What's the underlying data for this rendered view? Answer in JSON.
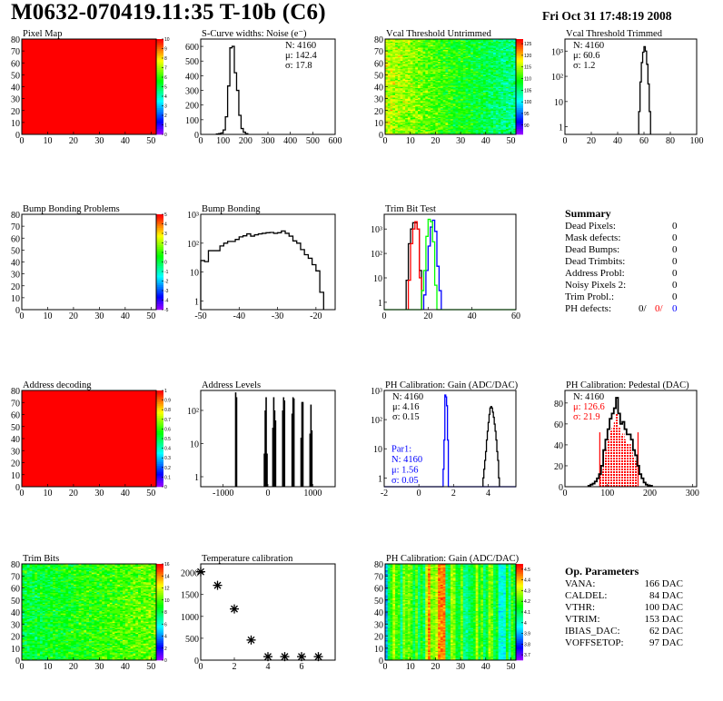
{
  "header": {
    "title": "M0632-070419.11:35 T-10b (C6)",
    "date": "Fri Oct 31 17:48:19 2008"
  },
  "colors": {
    "black": "#000000",
    "red": "#ff0000",
    "blue": "#0000ff",
    "green": "#00ff00"
  },
  "chart_data": [
    {
      "id": "pixel_map",
      "type": "heatmap",
      "title": "Pixel Map",
      "xlim": [
        0,
        52
      ],
      "ylim": [
        0,
        80
      ],
      "xticks": [
        0,
        10,
        20,
        30,
        40,
        50
      ],
      "yticks": [
        0,
        10,
        20,
        30,
        40,
        50,
        60,
        70,
        80
      ],
      "zlim": [
        0,
        10
      ],
      "zticks": [
        0,
        1,
        2,
        3,
        4,
        5,
        6,
        7,
        8,
        9,
        10
      ],
      "fill": "uniform",
      "uniform_value": 10
    },
    {
      "id": "noise",
      "type": "bar",
      "title": "S-Curve widths: Noise (e⁻)",
      "xlim": [
        0,
        600
      ],
      "ylim": [
        0,
        650
      ],
      "xticks": [
        0,
        100,
        200,
        300,
        400,
        500,
        600
      ],
      "yticks": [
        0,
        100,
        200,
        300,
        400,
        500,
        600
      ],
      "bin_width": 10,
      "series": [
        {
          "color": "#000000",
          "x": [
            70,
            80,
            90,
            100,
            110,
            120,
            130,
            140,
            150,
            160,
            170,
            180,
            190,
            200
          ],
          "values": [
            3,
            5,
            10,
            30,
            120,
            330,
            590,
            600,
            420,
            300,
            130,
            40,
            15,
            5
          ]
        }
      ],
      "stats": [
        {
          "position": "top-right",
          "lines": [
            {
              "text": "N: 4160",
              "color": "#000000"
            },
            {
              "text": "μ: 142.4",
              "color": "#000000"
            },
            {
              "text": "σ: 17.8",
              "color": "#000000"
            }
          ]
        }
      ]
    },
    {
      "id": "vcal_untrimmed",
      "type": "heatmap",
      "title": "Vcal Threshold Untrimmed",
      "xlim": [
        0,
        52
      ],
      "ylim": [
        0,
        80
      ],
      "xticks": [
        0,
        10,
        20,
        30,
        40,
        50
      ],
      "yticks": [
        0,
        10,
        20,
        30,
        40,
        50,
        60,
        70,
        80
      ],
      "zlim": [
        86,
        127
      ],
      "zticks": [
        90,
        95,
        100,
        105,
        110,
        115,
        120,
        125
      ],
      "fill": "vcal"
    },
    {
      "id": "vcal_trimmed",
      "type": "bar",
      "title": "Vcal Threshold Trimmed",
      "xlim": [
        0,
        100
      ],
      "ylim": [
        0.5,
        3000
      ],
      "log_y": true,
      "xticks": [
        0,
        20,
        40,
        60,
        80,
        100
      ],
      "yticks": [
        1,
        10,
        100,
        1000
      ],
      "ytick_labels": [
        "1",
        "10",
        "10²",
        "10³"
      ],
      "bin_width": 1,
      "series": [
        {
          "color": "#000000",
          "x": [
            56,
            57,
            58,
            59,
            60,
            61,
            62,
            63,
            64
          ],
          "values": [
            4,
            60,
            350,
            900,
            1500,
            1000,
            300,
            50,
            4
          ]
        }
      ],
      "stats": [
        {
          "position": "top-left",
          "lines": [
            {
              "text": "N: 4160",
              "color": "#000000"
            },
            {
              "text": "μ: 60.6",
              "color": "#000000"
            },
            {
              "text": "σ:  1.2",
              "color": "#000000"
            }
          ]
        }
      ]
    },
    {
      "id": "bump_problems",
      "type": "heatmap",
      "title": "Bump Bonding Problems",
      "xlim": [
        0,
        52
      ],
      "ylim": [
        0,
        80
      ],
      "xticks": [
        0,
        10,
        20,
        30,
        40,
        50
      ],
      "yticks": [
        0,
        10,
        20,
        30,
        40,
        50,
        60,
        70,
        80
      ],
      "zlim": [
        -5,
        5
      ],
      "zticks": [
        -5,
        -4,
        -3,
        -2,
        -1,
        0,
        1,
        2,
        3,
        4,
        5
      ],
      "fill": "empty"
    },
    {
      "id": "bump_bonding",
      "type": "bar",
      "title": "Bump Bonding",
      "xlim": [
        -50,
        -15
      ],
      "ylim": [
        0.5,
        1000
      ],
      "log_y": true,
      "xticks": [
        -50,
        -40,
        -30,
        -20
      ],
      "yticks": [
        1,
        10,
        100,
        1000
      ],
      "ytick_labels": [
        "1",
        "10",
        "10²",
        "10³"
      ],
      "bin_width": 1,
      "series": [
        {
          "color": "#000000",
          "x": [
            -50,
            -49,
            -48,
            -47,
            -46,
            -45,
            -44,
            -43,
            -42,
            -41,
            -40,
            -39,
            -38,
            -37,
            -36,
            -35,
            -34,
            -33,
            -32,
            -31,
            -30,
            -29,
            -28,
            -27,
            -26,
            -25,
            -24,
            -23,
            -22,
            -21,
            -20,
            -19
          ],
          "values": [
            25,
            23,
            55,
            55,
            55,
            80,
            100,
            115,
            115,
            135,
            165,
            180,
            210,
            175,
            195,
            210,
            220,
            230,
            235,
            220,
            230,
            265,
            220,
            175,
            120,
            100,
            60,
            40,
            30,
            18,
            11,
            2
          ]
        }
      ]
    },
    {
      "id": "trim_bit_test",
      "type": "bar",
      "title": "Trim Bit Test",
      "xlim": [
        0,
        60
      ],
      "ylim": [
        0.5,
        4000
      ],
      "log_y": true,
      "xticks": [
        0,
        20,
        40,
        60
      ],
      "yticks": [
        1,
        10,
        100,
        1000
      ],
      "ytick_labels": [
        "1",
        "10",
        "10²",
        "10³"
      ],
      "bin_width": 1,
      "series": [
        {
          "color": "#000000",
          "x": [
            10,
            11,
            12,
            13,
            14,
            15,
            16
          ],
          "values": [
            8,
            250,
            1000,
            1800,
            1800,
            1000,
            20
          ]
        },
        {
          "color": "#ff0000",
          "x": [
            11,
            12,
            13,
            14,
            15,
            16
          ],
          "values": [
            8,
            250,
            1000,
            2000,
            1000,
            10
          ]
        },
        {
          "color": "#0000ff",
          "x": [
            18,
            19,
            20,
            21,
            22,
            23,
            24,
            25
          ],
          "values": [
            2,
            20,
            200,
            1200,
            2300,
            800,
            30,
            3
          ]
        },
        {
          "color": "#00ff00",
          "x": [
            17,
            18,
            19,
            20,
            21,
            22,
            23
          ],
          "values": [
            3,
            20,
            500,
            2500,
            2000,
            300,
            5
          ],
          "full_range": true
        }
      ]
    },
    {
      "id": "address_decoding",
      "type": "heatmap",
      "title": "Address decoding",
      "xlim": [
        0,
        52
      ],
      "ylim": [
        0,
        80
      ],
      "xticks": [
        0,
        10,
        20,
        30,
        40,
        50
      ],
      "yticks": [
        0,
        10,
        20,
        30,
        40,
        50,
        60,
        70,
        80
      ],
      "zlim": [
        0,
        1
      ],
      "zticks": [
        0,
        0.1,
        0.2,
        0.3,
        0.4,
        0.5,
        0.6,
        0.7,
        0.8,
        0.9,
        1
      ],
      "fill": "uniform",
      "uniform_value": 1
    },
    {
      "id": "address_levels",
      "type": "spikes",
      "title": "Address Levels",
      "xlim": [
        -1500,
        1500
      ],
      "ylim": [
        0.5,
        400
      ],
      "log_y": true,
      "xticks": [
        -1000,
        0,
        1000
      ],
      "yticks": [
        1,
        10,
        100
      ],
      "ytick_labels": [
        "1",
        "10",
        "10²"
      ],
      "series": [
        {
          "color": "#000000",
          "x": [
            -720,
            -700,
            -80,
            -60,
            -40,
            -20,
            110,
            130,
            150,
            170,
            330,
            350,
            370,
            540,
            560,
            580,
            740,
            760,
            780,
            940,
            960,
            980
          ],
          "values": [
            350,
            250,
            5,
            100,
            250,
            5,
            30,
            250,
            100,
            50,
            100,
            250,
            200,
            80,
            250,
            230,
            15,
            180,
            180,
            20,
            150,
            25
          ]
        }
      ]
    },
    {
      "id": "ph_gain",
      "type": "bar",
      "title": "PH Calibration: Gain (ADC/DAC)",
      "xlim": [
        -2,
        5.6
      ],
      "ylim": [
        0.5,
        1000
      ],
      "log_y": true,
      "xticks": [
        -2,
        0,
        2,
        4
      ],
      "yticks": [
        1,
        10,
        100,
        1000
      ],
      "ytick_labels": [
        "1",
        "10",
        "10²",
        "10³"
      ],
      "bin_width": 0.05,
      "series": [
        {
          "color": "#000000",
          "x": [
            3.7,
            3.75,
            3.8,
            3.85,
            3.9,
            3.95,
            4.0,
            4.05,
            4.1,
            4.15,
            4.2,
            4.25,
            4.3,
            4.35,
            4.4,
            4.45,
            4.5,
            4.55,
            4.6
          ],
          "values": [
            1,
            2,
            4,
            8,
            20,
            40,
            80,
            150,
            250,
            280,
            250,
            180,
            120,
            70,
            40,
            20,
            8,
            4,
            1
          ]
        },
        {
          "color": "#0000ff",
          "x": [
            1.4,
            1.45,
            1.5,
            1.55,
            1.6,
            1.65
          ],
          "values": [
            2,
            20,
            700,
            600,
            300,
            20
          ],
          "full_range": true
        }
      ],
      "stats": [
        {
          "position": "top-left",
          "lines": [
            {
              "text": "N: 4160",
              "color": "#000000"
            },
            {
              "text": "μ: 4.16",
              "color": "#000000"
            },
            {
              "text": "σ: 0.15",
              "color": "#000000"
            }
          ]
        },
        {
          "position": "bottom-left",
          "lines": [
            {
              "text": "Par1:",
              "color": "#0000ff"
            },
            {
              "text": "N: 4160",
              "color": "#0000ff"
            },
            {
              "text": "μ: 1.56",
              "color": "#0000ff"
            },
            {
              "text": "σ: 0.05",
              "color": "#0000ff"
            }
          ]
        }
      ]
    },
    {
      "id": "ph_pedestal",
      "type": "bar",
      "title": "PH Calibration: Pedestal (DAC)",
      "xlim": [
        0,
        310
      ],
      "ylim": [
        0,
        92
      ],
      "xticks": [
        0,
        100,
        200,
        300
      ],
      "yticks": [
        0,
        20,
        40,
        60,
        80
      ],
      "bin_width": 5,
      "series": [
        {
          "color": "#000000",
          "x": [
            55,
            60,
            65,
            70,
            75,
            80,
            85,
            90,
            95,
            100,
            105,
            110,
            115,
            120,
            125,
            130,
            135,
            140,
            145,
            150,
            155,
            160,
            165,
            170,
            175,
            180,
            185,
            190,
            195,
            200
          ],
          "values": [
            1,
            2,
            3,
            5,
            8,
            12,
            20,
            35,
            45,
            55,
            65,
            70,
            75,
            85,
            70,
            60,
            62,
            55,
            50,
            50,
            45,
            35,
            30,
            20,
            12,
            8,
            4,
            2,
            1,
            1
          ]
        }
      ],
      "fit": {
        "color": "#ff0000",
        "range": [
          82,
          172
        ],
        "height": 52
      },
      "stats": [
        {
          "position": "top-left",
          "lines": [
            {
              "text": "N: 4160",
              "color": "#000000"
            },
            {
              "text": "μ: 126.6",
              "color": "#ff0000"
            },
            {
              "text": "σ: 21.9",
              "color": "#ff0000"
            }
          ]
        }
      ]
    },
    {
      "id": "trim_bits",
      "type": "heatmap",
      "title": "Trim Bits",
      "xlim": [
        0,
        52
      ],
      "ylim": [
        0,
        80
      ],
      "xticks": [
        0,
        10,
        20,
        30,
        40,
        50
      ],
      "yticks": [
        0,
        10,
        20,
        30,
        40,
        50,
        60,
        70,
        80
      ],
      "zlim": [
        0,
        16
      ],
      "zticks": [
        0,
        2,
        4,
        6,
        8,
        10,
        12,
        14,
        16
      ],
      "fill": "trim"
    },
    {
      "id": "temperature",
      "type": "scatter",
      "title": "Temperature calibration",
      "xlim": [
        0,
        8
      ],
      "ylim": [
        0,
        2200
      ],
      "xticks": [
        0,
        2,
        4,
        6
      ],
      "yticks": [
        0,
        500,
        1000,
        1500,
        2000
      ],
      "series": [
        {
          "color": "#000000",
          "x": [
            0,
            1,
            2,
            3,
            4,
            5,
            6,
            7
          ],
          "values": [
            2020,
            1710,
            1170,
            460,
            80,
            80,
            80,
            80
          ]
        }
      ]
    },
    {
      "id": "ph_gain_map",
      "type": "heatmap",
      "title": "PH Calibration: Gain (ADC/DAC)",
      "xlim": [
        0,
        52
      ],
      "ylim": [
        0,
        80
      ],
      "xticks": [
        0,
        10,
        20,
        30,
        40,
        50
      ],
      "yticks": [
        0,
        10,
        20,
        30,
        40,
        50,
        60,
        70,
        80
      ],
      "zlim": [
        3.65,
        4.55
      ],
      "zticks": [
        3.7,
        3.8,
        3.9,
        4,
        4.1,
        4.2,
        4.3,
        4.4,
        4.5
      ],
      "fill": "phgain"
    }
  ],
  "summary": {
    "title": "Summary",
    "rows": [
      {
        "label": "Dead Pixels:",
        "value": "0"
      },
      {
        "label": "Mask defects:",
        "value": "0"
      },
      {
        "label": "Dead Bumps:",
        "value": "0"
      },
      {
        "label": "Dead Trimbits:",
        "value": "0"
      },
      {
        "label": "Address Probl:",
        "value": "0"
      },
      {
        "label": "Noisy Pixels 2:",
        "value": "0"
      },
      {
        "label": "Trim Probl.:",
        "value": "0"
      }
    ],
    "ph_defects": {
      "label": "PH defects:",
      "values": [
        "0/",
        "0/",
        "0"
      ]
    }
  },
  "op_parameters": {
    "title": "Op. Parameters",
    "rows": [
      {
        "label": "VANA:",
        "value": "166 DAC"
      },
      {
        "label": "CALDEL:",
        "value": "84 DAC"
      },
      {
        "label": "VTHR:",
        "value": "100 DAC"
      },
      {
        "label": "VTRIM:",
        "value": "153 DAC"
      },
      {
        "label": "IBIAS_DAC:",
        "value": "62 DAC"
      },
      {
        "label": "VOFFSETOP:",
        "value": "97 DAC"
      }
    ]
  }
}
